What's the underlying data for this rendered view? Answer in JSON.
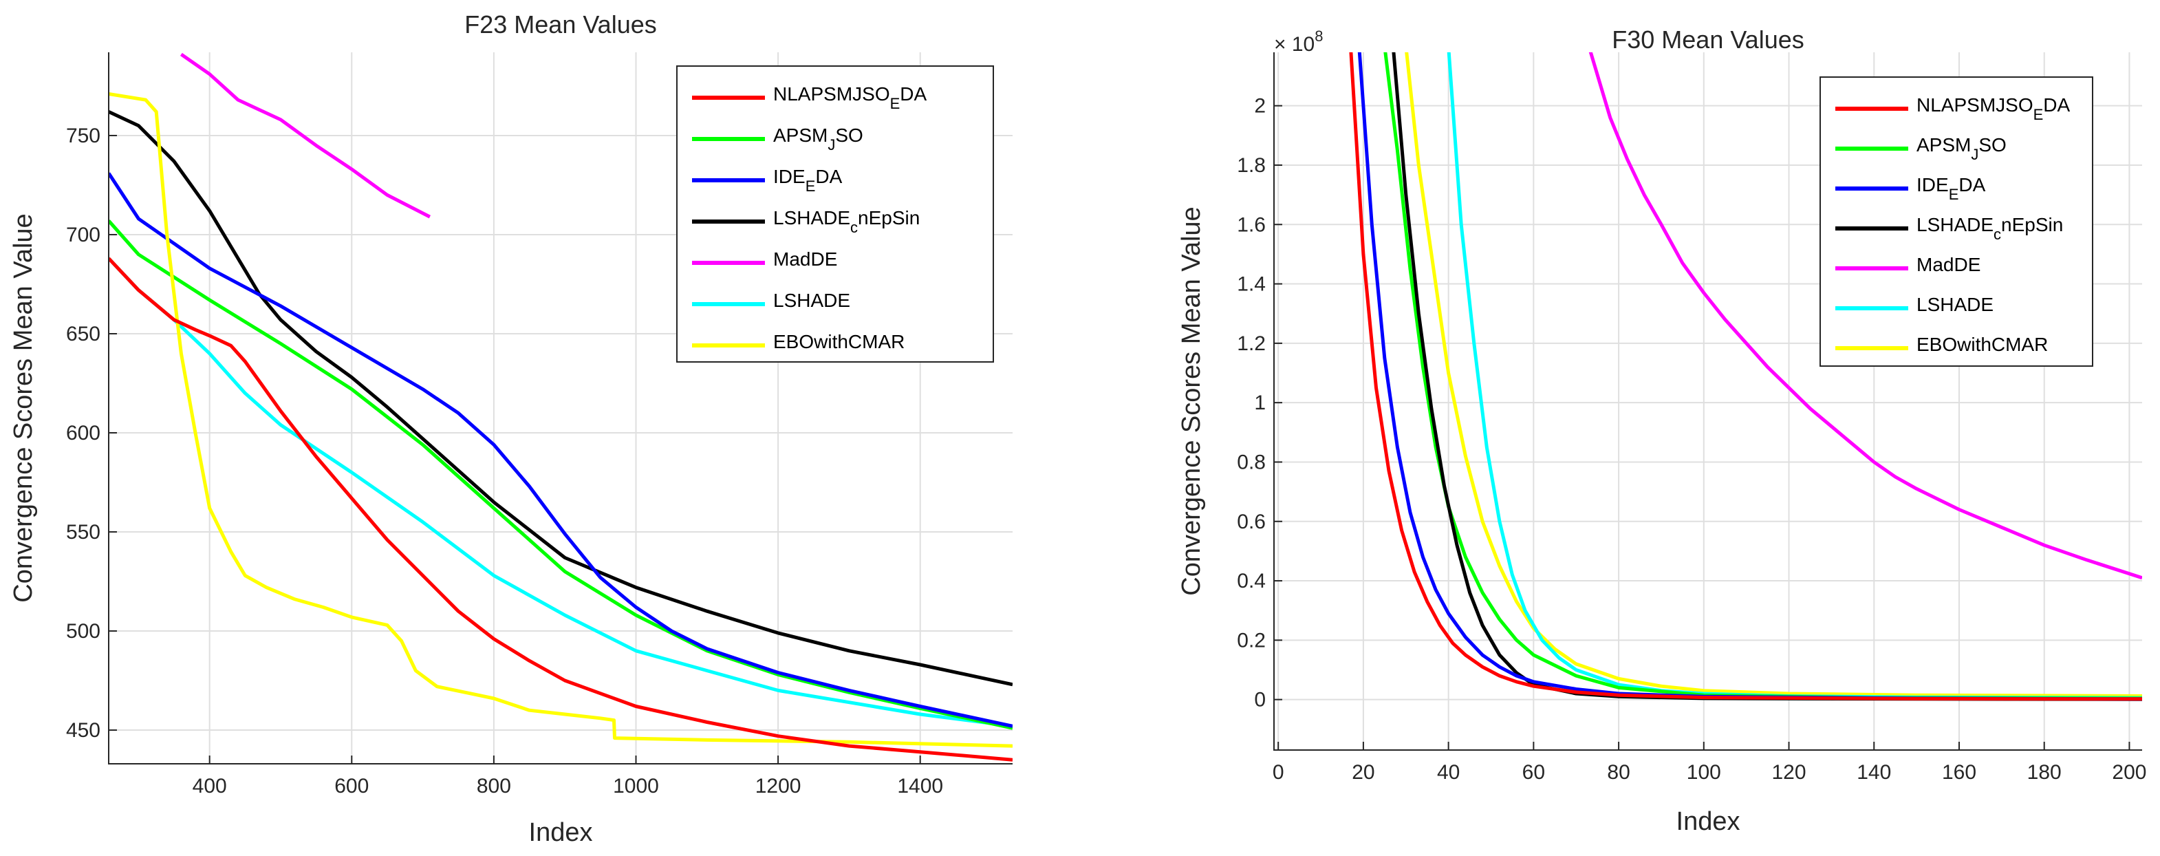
{
  "chart_data": [
    {
      "type": "line",
      "title": "F23 Mean Values",
      "xlabel": "Index",
      "ylabel": "Convergence Scores Mean Value",
      "xlim": [
        258,
        1530
      ],
      "ylim": [
        433,
        792
      ],
      "grid": true,
      "legend_position": "top-right",
      "x_ticks": [
        400,
        600,
        800,
        1000,
        1200,
        1400
      ],
      "y_ticks": [
        450,
        500,
        550,
        600,
        650,
        700,
        750
      ],
      "legend_order": [
        "NLAPSMJSO_EDA",
        "APSM_JSO",
        "IDE_EDA",
        "LSHADE_cnEpSin",
        "MadDE",
        "LSHADE",
        "EBOwithCMAR"
      ],
      "series": [
        {
          "name": "MadDE",
          "color": "#ff00ff",
          "x": [
            360,
            400,
            440,
            500,
            550,
            600,
            650,
            710
          ],
          "y": [
            791,
            781,
            768,
            758,
            745,
            733,
            720,
            709
          ]
        },
        {
          "name": "LSHADE",
          "color": "#00ffff",
          "x": [
            258,
            300,
            350,
            400,
            450,
            500,
            600,
            700,
            800,
            900,
            1000,
            1100,
            1200,
            1300,
            1400,
            1530
          ],
          "y": [
            688,
            672,
            657,
            640,
            620,
            604,
            580,
            555,
            528,
            508,
            490,
            480,
            470,
            464,
            458,
            452
          ]
        },
        {
          "name": "LSHADE_cnEpSin",
          "color": "#000000",
          "x": [
            258,
            300,
            350,
            400,
            440,
            470,
            500,
            550,
            600,
            650,
            700,
            800,
            900,
            1000,
            1100,
            1200,
            1300,
            1400,
            1530
          ],
          "y": [
            762,
            755,
            737,
            712,
            688,
            670,
            657,
            641,
            628,
            613,
            597,
            565,
            537,
            522,
            510,
            499,
            490,
            483,
            473
          ]
        },
        {
          "name": "APSM_JSO",
          "color": "#00ff00",
          "x": [
            258,
            300,
            400,
            500,
            600,
            700,
            800,
            900,
            1000,
            1100,
            1200,
            1300,
            1400,
            1530
          ],
          "y": [
            707,
            690,
            667,
            645,
            622,
            594,
            562,
            530,
            508,
            490,
            478,
            469,
            461,
            451
          ]
        },
        {
          "name": "IDE_EDA",
          "color": "#0000ff",
          "x": [
            258,
            300,
            400,
            500,
            600,
            700,
            750,
            800,
            850,
            900,
            950,
            1000,
            1050,
            1100,
            1200,
            1300,
            1400,
            1530
          ],
          "y": [
            731,
            708,
            683,
            664,
            643,
            622,
            610,
            594,
            573,
            549,
            527,
            512,
            500,
            491,
            479,
            470,
            462,
            452
          ]
        },
        {
          "name": "EBOwithCMAR",
          "color": "#ffff00",
          "x": [
            258,
            310,
            325,
            340,
            360,
            380,
            400,
            430,
            450,
            480,
            520,
            560,
            600,
            650,
            670,
            690,
            720,
            760,
            800,
            850,
            900,
            950,
            969,
            970,
            1100,
            1300,
            1530
          ],
          "y": [
            771,
            768,
            762,
            700,
            640,
            600,
            562,
            540,
            528,
            522,
            516,
            512,
            507,
            503,
            495,
            480,
            472,
            469,
            466,
            460,
            458,
            456,
            455,
            446,
            445,
            444,
            442
          ]
        },
        {
          "name": "NLAPSMJSO_EDA",
          "color": "#ff0000",
          "x": [
            258,
            300,
            350,
            380,
            400,
            430,
            450,
            500,
            550,
            600,
            650,
            700,
            750,
            800,
            850,
            900,
            1000,
            1100,
            1200,
            1300,
            1400,
            1530
          ],
          "y": [
            688,
            672,
            657,
            652,
            649,
            644,
            636,
            611,
            588,
            567,
            546,
            528,
            510,
            496,
            485,
            475,
            462,
            454,
            447,
            442,
            439,
            435
          ]
        }
      ]
    },
    {
      "type": "line",
      "title": "F30 Mean Values",
      "xlabel": "Index",
      "ylabel": "Convergence Scores Mean Value",
      "scale_label": "× 10",
      "scale_exponent": "8",
      "xlim": [
        -1,
        203
      ],
      "ylim": [
        -0.17,
        2.18
      ],
      "grid": true,
      "legend_position": "top-right",
      "x_ticks": [
        0,
        20,
        40,
        60,
        80,
        100,
        120,
        140,
        160,
        180,
        200
      ],
      "y_ticks": [
        0,
        0.2,
        0.4,
        0.6,
        0.8,
        1,
        1.2,
        1.4,
        1.6,
        1.8,
        2
      ],
      "legend_order": [
        "NLAPSMJSO_EDA",
        "APSM_JSO",
        "IDE_EDA",
        "LSHADE_cnEpSin",
        "MadDE",
        "LSHADE",
        "EBOwithCMAR"
      ],
      "series": [
        {
          "name": "EBOwithCMAR",
          "color": "#ffff00",
          "x": [
            30,
            33,
            36,
            40,
            44,
            48,
            52,
            56,
            60,
            65,
            70,
            80,
            90,
            100,
            120,
            150,
            203
          ],
          "y": [
            2.2,
            1.8,
            1.5,
            1.1,
            0.82,
            0.6,
            0.45,
            0.33,
            0.24,
            0.17,
            0.12,
            0.07,
            0.045,
            0.03,
            0.02,
            0.015,
            0.012
          ]
        },
        {
          "name": "LSHADE",
          "color": "#00ffff",
          "x": [
            40,
            43,
            46,
            49,
            52,
            55,
            58,
            62,
            66,
            70,
            80,
            90,
            100,
            120,
            150,
            203
          ],
          "y": [
            2.2,
            1.6,
            1.2,
            0.85,
            0.6,
            0.42,
            0.3,
            0.2,
            0.14,
            0.1,
            0.05,
            0.03,
            0.02,
            0.012,
            0.008,
            0.006
          ]
        },
        {
          "name": "APSM_JSO",
          "color": "#00ff00",
          "x": [
            25,
            28,
            31,
            34,
            37,
            40,
            44,
            48,
            52,
            56,
            60,
            70,
            80,
            100,
            140,
            203
          ],
          "y": [
            2.2,
            1.85,
            1.45,
            1.12,
            0.85,
            0.65,
            0.48,
            0.36,
            0.27,
            0.2,
            0.15,
            0.08,
            0.04,
            0.015,
            0.006,
            0.004
          ]
        },
        {
          "name": "LSHADE_cnEpSin",
          "color": "#000000",
          "x": [
            27,
            30,
            33,
            36,
            39,
            42,
            45,
            48,
            52,
            56,
            60,
            70,
            80,
            100,
            150,
            203
          ],
          "y": [
            2.2,
            1.7,
            1.3,
            0.98,
            0.72,
            0.52,
            0.36,
            0.25,
            0.15,
            0.09,
            0.05,
            0.02,
            0.01,
            0.004,
            0.002,
            0.001
          ]
        },
        {
          "name": "IDE_EDA",
          "color": "#0000ff",
          "x": [
            19,
            22,
            25,
            28,
            31,
            34,
            37,
            40,
            44,
            48,
            52,
            56,
            60,
            70,
            80,
            100,
            150,
            203
          ],
          "y": [
            2.2,
            1.6,
            1.15,
            0.85,
            0.63,
            0.48,
            0.37,
            0.29,
            0.21,
            0.15,
            0.11,
            0.08,
            0.06,
            0.035,
            0.02,
            0.01,
            0.004,
            0.002
          ]
        },
        {
          "name": "NLAPSMJSO_EDA",
          "color": "#ff0000",
          "x": [
            17,
            20,
            23,
            26,
            29,
            32,
            35,
            38,
            41,
            44,
            48,
            52,
            56,
            60,
            70,
            80,
            100,
            150,
            203
          ],
          "y": [
            2.2,
            1.5,
            1.05,
            0.77,
            0.57,
            0.43,
            0.33,
            0.25,
            0.19,
            0.15,
            0.11,
            0.08,
            0.06,
            0.045,
            0.025,
            0.015,
            0.007,
            0.003,
            0.002
          ]
        },
        {
          "name": "MadDE",
          "color": "#ff00ff",
          "x": [
            73,
            78,
            82,
            86,
            90,
            95,
            100,
            105,
            110,
            115,
            120,
            125,
            130,
            135,
            140,
            145,
            150,
            160,
            170,
            180,
            190,
            203
          ],
          "y": [
            2.2,
            1.96,
            1.82,
            1.7,
            1.6,
            1.47,
            1.37,
            1.28,
            1.2,
            1.12,
            1.05,
            0.98,
            0.92,
            0.86,
            0.8,
            0.75,
            0.71,
            0.64,
            0.58,
            0.52,
            0.47,
            0.41
          ]
        }
      ]
    }
  ],
  "legend_labels": {
    "NLAPSMJSO_EDA": {
      "main": "NLAPSMJSO",
      "sub": "E",
      "tail": "DA"
    },
    "APSM_JSO": {
      "main": "APSM",
      "sub": "J",
      "tail": "SO"
    },
    "IDE_EDA": {
      "main": "IDE",
      "sub": "E",
      "tail": "DA"
    },
    "LSHADE_cnEpSin": {
      "main": "LSHADE",
      "sub": "c",
      "tail": "nEpSin"
    },
    "MadDE": {
      "main": "MadDE",
      "sub": "",
      "tail": ""
    },
    "LSHADE": {
      "main": "LSHADE",
      "sub": "",
      "tail": ""
    },
    "EBOwithCMAR": {
      "main": "EBOwithCMAR",
      "sub": "",
      "tail": ""
    }
  }
}
